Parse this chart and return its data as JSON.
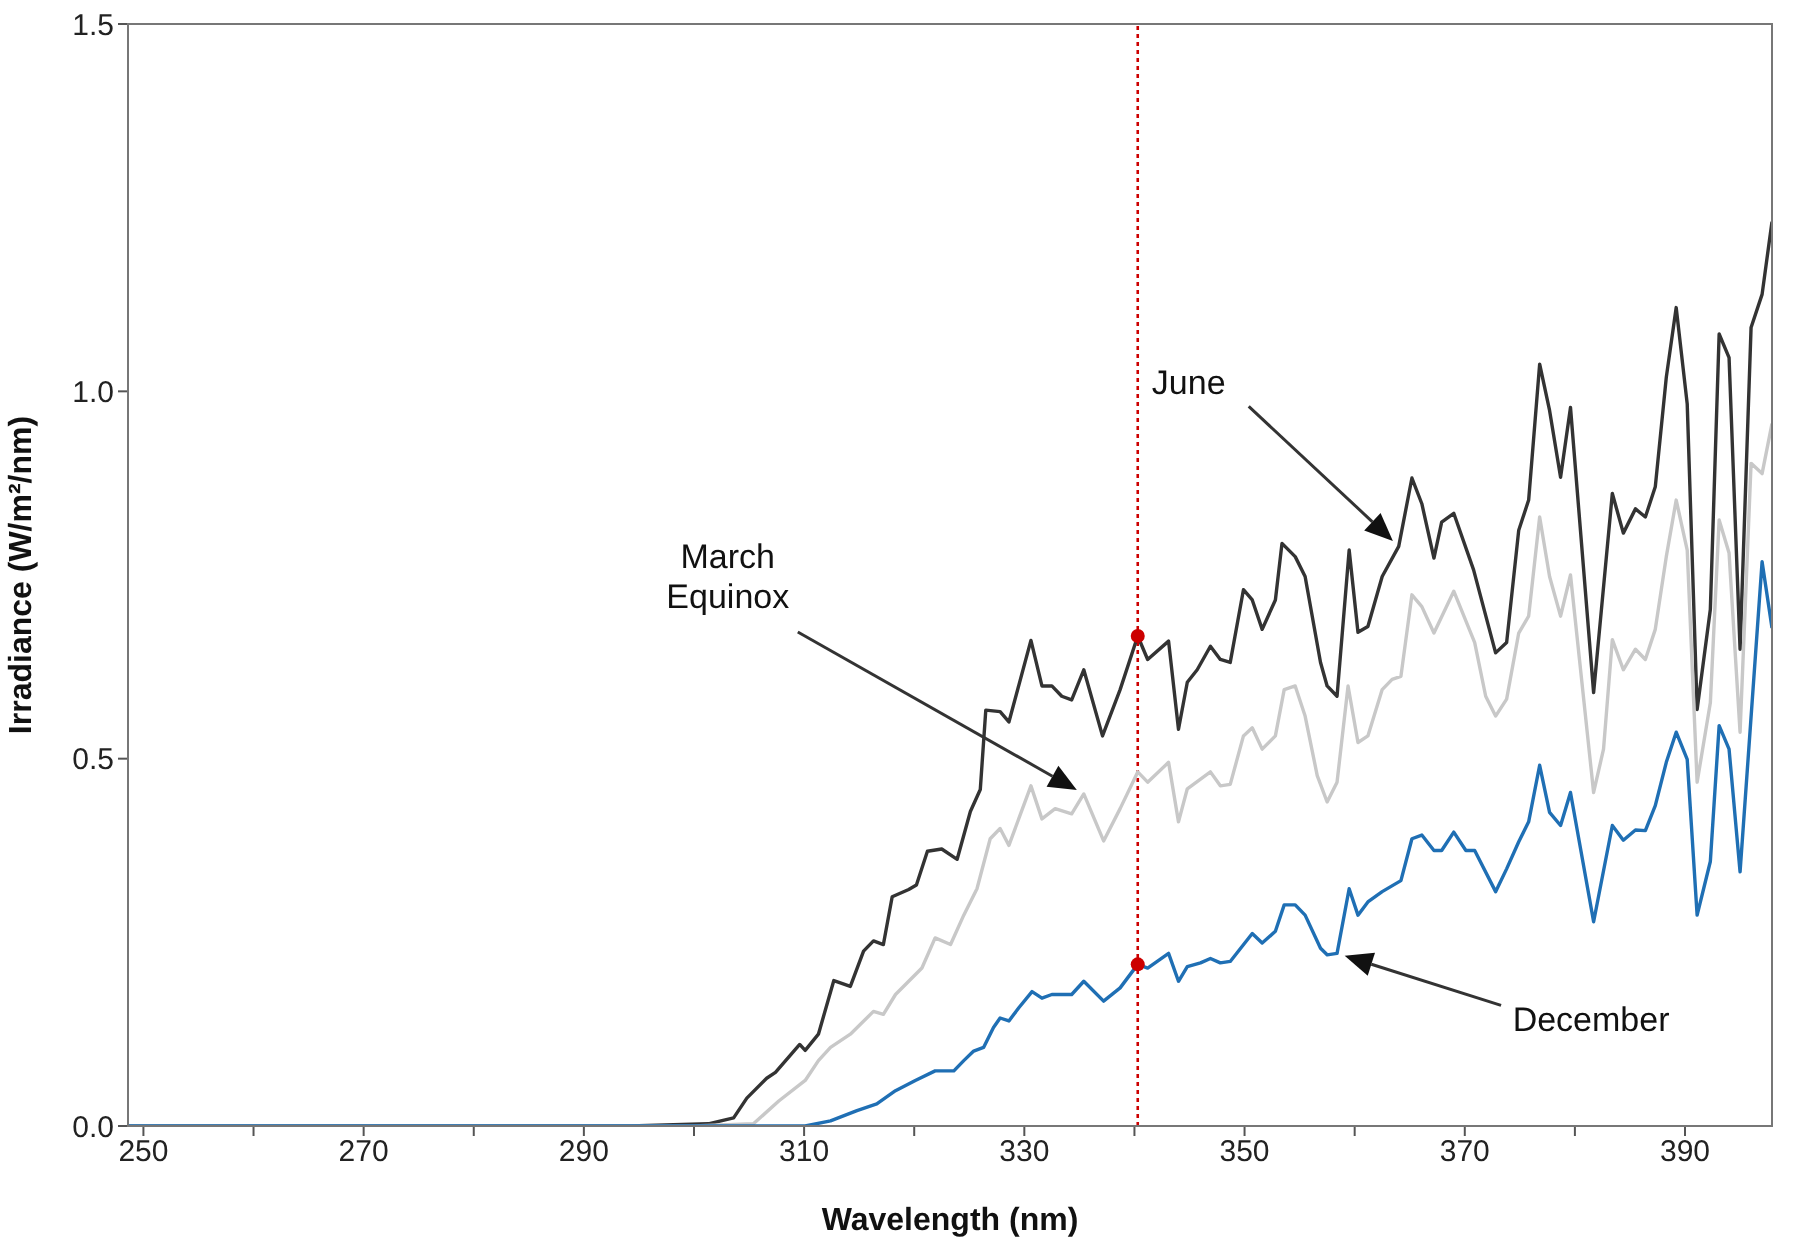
{
  "chart_data": {
    "type": "line",
    "xlabel": "Wavelength (nm)",
    "ylabel": "Irradiance (W/m²/nm)",
    "xlim": [
      248.6,
      397.9
    ],
    "xticks": [
      250,
      {
        "value": 260,
        "label": null
      },
      270,
      {
        "value": 280,
        "label": null
      },
      290,
      {
        "value": 300,
        "label": null
      },
      310,
      {
        "value": 320,
        "label": null
      },
      330,
      {
        "value": 340,
        "label": null
      },
      350,
      {
        "value": 360,
        "label": null
      },
      370,
      {
        "value": 380,
        "label": null
      },
      390
    ],
    "ylim": [
      0,
      1.5
    ],
    "yticks": [
      {
        "value": 0,
        "label": "0.0"
      },
      0.5,
      {
        "value": 1,
        "label": "1.0"
      },
      1.5
    ],
    "marker": "none",
    "line_style": "solid",
    "series": [
      {
        "color": "#333333",
        "x": [
          248.6,
          294.2,
          301.3,
          303.6,
          304.8,
          306.6,
          307.4,
          309.6,
          310.1,
          311.3,
          312.7,
          314.2,
          315.4,
          316.3,
          317.2,
          318.0,
          319.5,
          320.2,
          321.2,
          322.5,
          323.9,
          325.1,
          326.0,
          326.5,
          327.8,
          328.6,
          330.6,
          331.6,
          332.5,
          333.4,
          334.3,
          335.4,
          337.1,
          338.7,
          340.3,
          341.2,
          343.1,
          344.0,
          344.8,
          345.7,
          346.9,
          347.8,
          348.7,
          349.9,
          350.7,
          351.6,
          352.8,
          353.4,
          354.6,
          355.5,
          356.9,
          357.5,
          358.4,
          359.5,
          360.3,
          361.2,
          362.5,
          364.0,
          365.2,
          366.1,
          367.2,
          367.9,
          369.0,
          370.8,
          372.8,
          373.8,
          374.9,
          375.8,
          376.8,
          377.7,
          378.7,
          379.6,
          381.7,
          383.4,
          384.4,
          385.5,
          386.4,
          387.3,
          388.3,
          389.2,
          390.2,
          391.1,
          392.3,
          393.1,
          394.0,
          395.0,
          396.0,
          397.0,
          397.9
        ],
        "values": [
          0,
          0,
          0.003,
          0.011,
          0.038,
          0.065,
          0.073,
          0.111,
          0.103,
          0.125,
          0.198,
          0.19,
          0.238,
          0.252,
          0.247,
          0.312,
          0.322,
          0.328,
          0.374,
          0.377,
          0.363,
          0.428,
          0.458,
          0.566,
          0.564,
          0.55,
          0.661,
          0.599,
          0.599,
          0.585,
          0.58,
          0.621,
          0.531,
          0.594,
          0.667,
          0.635,
          0.66,
          0.54,
          0.604,
          0.621,
          0.653,
          0.635,
          0.631,
          0.73,
          0.716,
          0.676,
          0.716,
          0.793,
          0.775,
          0.748,
          0.631,
          0.599,
          0.585,
          0.784,
          0.672,
          0.68,
          0.748,
          0.789,
          0.882,
          0.847,
          0.773,
          0.822,
          0.834,
          0.757,
          0.644,
          0.658,
          0.811,
          0.852,
          1.037,
          0.974,
          0.883,
          0.978,
          0.59,
          0.861,
          0.807,
          0.84,
          0.829,
          0.87,
          1.019,
          1.114,
          0.983,
          0.567,
          0.703,
          1.078,
          1.046,
          0.649,
          1.087,
          1.132,
          1.231
        ]
      },
      {
        "color": "#c8c8c8",
        "x": [
          248.6,
          300.0,
          305.4,
          307.7,
          310.1,
          311.3,
          312.4,
          314.2,
          316.3,
          317.2,
          318.3,
          320.7,
          321.9,
          323.3,
          324.5,
          325.7,
          326.9,
          327.8,
          328.6,
          330.6,
          331.6,
          332.8,
          334.3,
          335.4,
          337.2,
          338.7,
          340.3,
          341.2,
          343.1,
          344.0,
          344.8,
          346.9,
          347.8,
          348.7,
          349.9,
          350.7,
          351.6,
          352.8,
          353.6,
          354.6,
          355.5,
          356.6,
          357.5,
          358.4,
          359.4,
          360.3,
          361.2,
          362.5,
          363.4,
          364.2,
          365.2,
          366.1,
          367.2,
          369.0,
          370.9,
          371.9,
          372.8,
          373.8,
          374.9,
          375.8,
          376.8,
          377.7,
          378.7,
          379.6,
          381.7,
          382.6,
          383.4,
          384.4,
          385.5,
          386.4,
          387.3,
          388.3,
          389.2,
          390.2,
          391.1,
          392.3,
          393.1,
          394.0,
          395.0,
          396.0,
          397.0,
          397.9
        ],
        "values": [
          0,
          0,
          0.003,
          0.034,
          0.062,
          0.089,
          0.107,
          0.125,
          0.156,
          0.152,
          0.179,
          0.215,
          0.256,
          0.247,
          0.287,
          0.323,
          0.391,
          0.405,
          0.382,
          0.463,
          0.418,
          0.432,
          0.425,
          0.452,
          0.388,
          0.432,
          0.482,
          0.468,
          0.495,
          0.414,
          0.459,
          0.482,
          0.463,
          0.465,
          0.531,
          0.542,
          0.513,
          0.531,
          0.594,
          0.599,
          0.558,
          0.477,
          0.441,
          0.468,
          0.599,
          0.522,
          0.531,
          0.594,
          0.608,
          0.612,
          0.723,
          0.707,
          0.671,
          0.728,
          0.658,
          0.585,
          0.558,
          0.581,
          0.671,
          0.694,
          0.829,
          0.748,
          0.694,
          0.75,
          0.454,
          0.513,
          0.662,
          0.621,
          0.649,
          0.635,
          0.676,
          0.775,
          0.852,
          0.784,
          0.468,
          0.576,
          0.825,
          0.78,
          0.536,
          0.902,
          0.888,
          0.956
        ]
      },
      {
        "color": "#1f6fb4",
        "x": [
          248.6,
          310.1,
          312.4,
          314.8,
          316.6,
          318.3,
          320.1,
          321.9,
          323.6,
          324.5,
          325.4,
          326.3,
          327.2,
          327.8,
          328.6,
          329.5,
          330.7,
          331.6,
          332.5,
          334.3,
          335.4,
          337.2,
          338.7,
          340.3,
          341.2,
          343.1,
          344.0,
          344.8,
          346.0,
          346.9,
          347.8,
          348.7,
          350.7,
          351.6,
          352.8,
          353.6,
          354.6,
          355.5,
          356.9,
          357.5,
          358.4,
          359.5,
          360.3,
          361.2,
          362.5,
          364.2,
          365.2,
          366.1,
          367.2,
          367.9,
          369.0,
          370.1,
          370.9,
          372.8,
          373.8,
          374.9,
          375.8,
          376.8,
          377.7,
          378.7,
          379.6,
          381.7,
          383.4,
          384.4,
          385.5,
          386.4,
          387.3,
          388.3,
          389.2,
          390.2,
          391.1,
          392.3,
          393.1,
          394.0,
          395.0,
          397.0,
          397.9
        ],
        "values": [
          0,
          0,
          0.007,
          0.021,
          0.03,
          0.048,
          0.062,
          0.075,
          0.075,
          0.089,
          0.102,
          0.107,
          0.134,
          0.147,
          0.143,
          0.161,
          0.183,
          0.174,
          0.179,
          0.179,
          0.197,
          0.17,
          0.188,
          0.22,
          0.215,
          0.235,
          0.197,
          0.217,
          0.222,
          0.228,
          0.222,
          0.224,
          0.262,
          0.249,
          0.265,
          0.301,
          0.301,
          0.287,
          0.242,
          0.233,
          0.235,
          0.323,
          0.287,
          0.305,
          0.319,
          0.334,
          0.391,
          0.396,
          0.375,
          0.375,
          0.4,
          0.375,
          0.375,
          0.319,
          0.35,
          0.387,
          0.414,
          0.491,
          0.427,
          0.409,
          0.454,
          0.278,
          0.409,
          0.389,
          0.403,
          0.402,
          0.436,
          0.495,
          0.536,
          0.499,
          0.287,
          0.36,
          0.545,
          0.513,
          0.346,
          0.768,
          0.678
        ]
      },
      {
        "type": "scatter",
        "marker": "circle",
        "color": "#cc0000",
        "x": [
          340.3,
          340.3
        ],
        "values": [
          0.667,
          0.22
        ]
      }
    ],
    "ref_lines": [
      {
        "axis": "x",
        "value": 340.3,
        "color": "#cc0000",
        "line_style": "dotted"
      }
    ],
    "annotations": [
      "June",
      "March Equinox",
      "December"
    ]
  }
}
